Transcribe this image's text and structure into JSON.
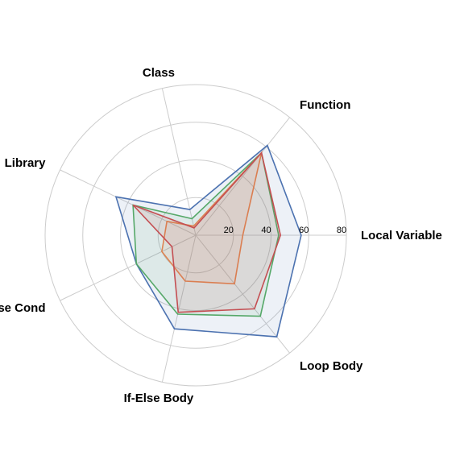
{
  "chart_data": {
    "type": "radar",
    "axes": [
      "Local Variable",
      "Function",
      "Class",
      "Library",
      "If-Else Cond",
      "If-Else Body",
      "Loop Body"
    ],
    "rlim": [
      0,
      80
    ],
    "rticks": [
      20,
      40,
      60,
      80
    ],
    "tick_labels": [
      "20",
      "40",
      "60",
      "80"
    ],
    "grid": true,
    "series": [
      {
        "color": "#4c72b0",
        "values": [
          56,
          61,
          14,
          47,
          35,
          51,
          69
        ]
      },
      {
        "color": "#55a868",
        "values": [
          44,
          56,
          9,
          37,
          35,
          43,
          55
        ]
      },
      {
        "color": "#dd8452",
        "values": [
          25,
          56,
          5,
          17,
          20,
          25,
          33
        ]
      },
      {
        "color": "#c44e52",
        "values": [
          45,
          56,
          4,
          37,
          14,
          42,
          50
        ]
      }
    ]
  }
}
